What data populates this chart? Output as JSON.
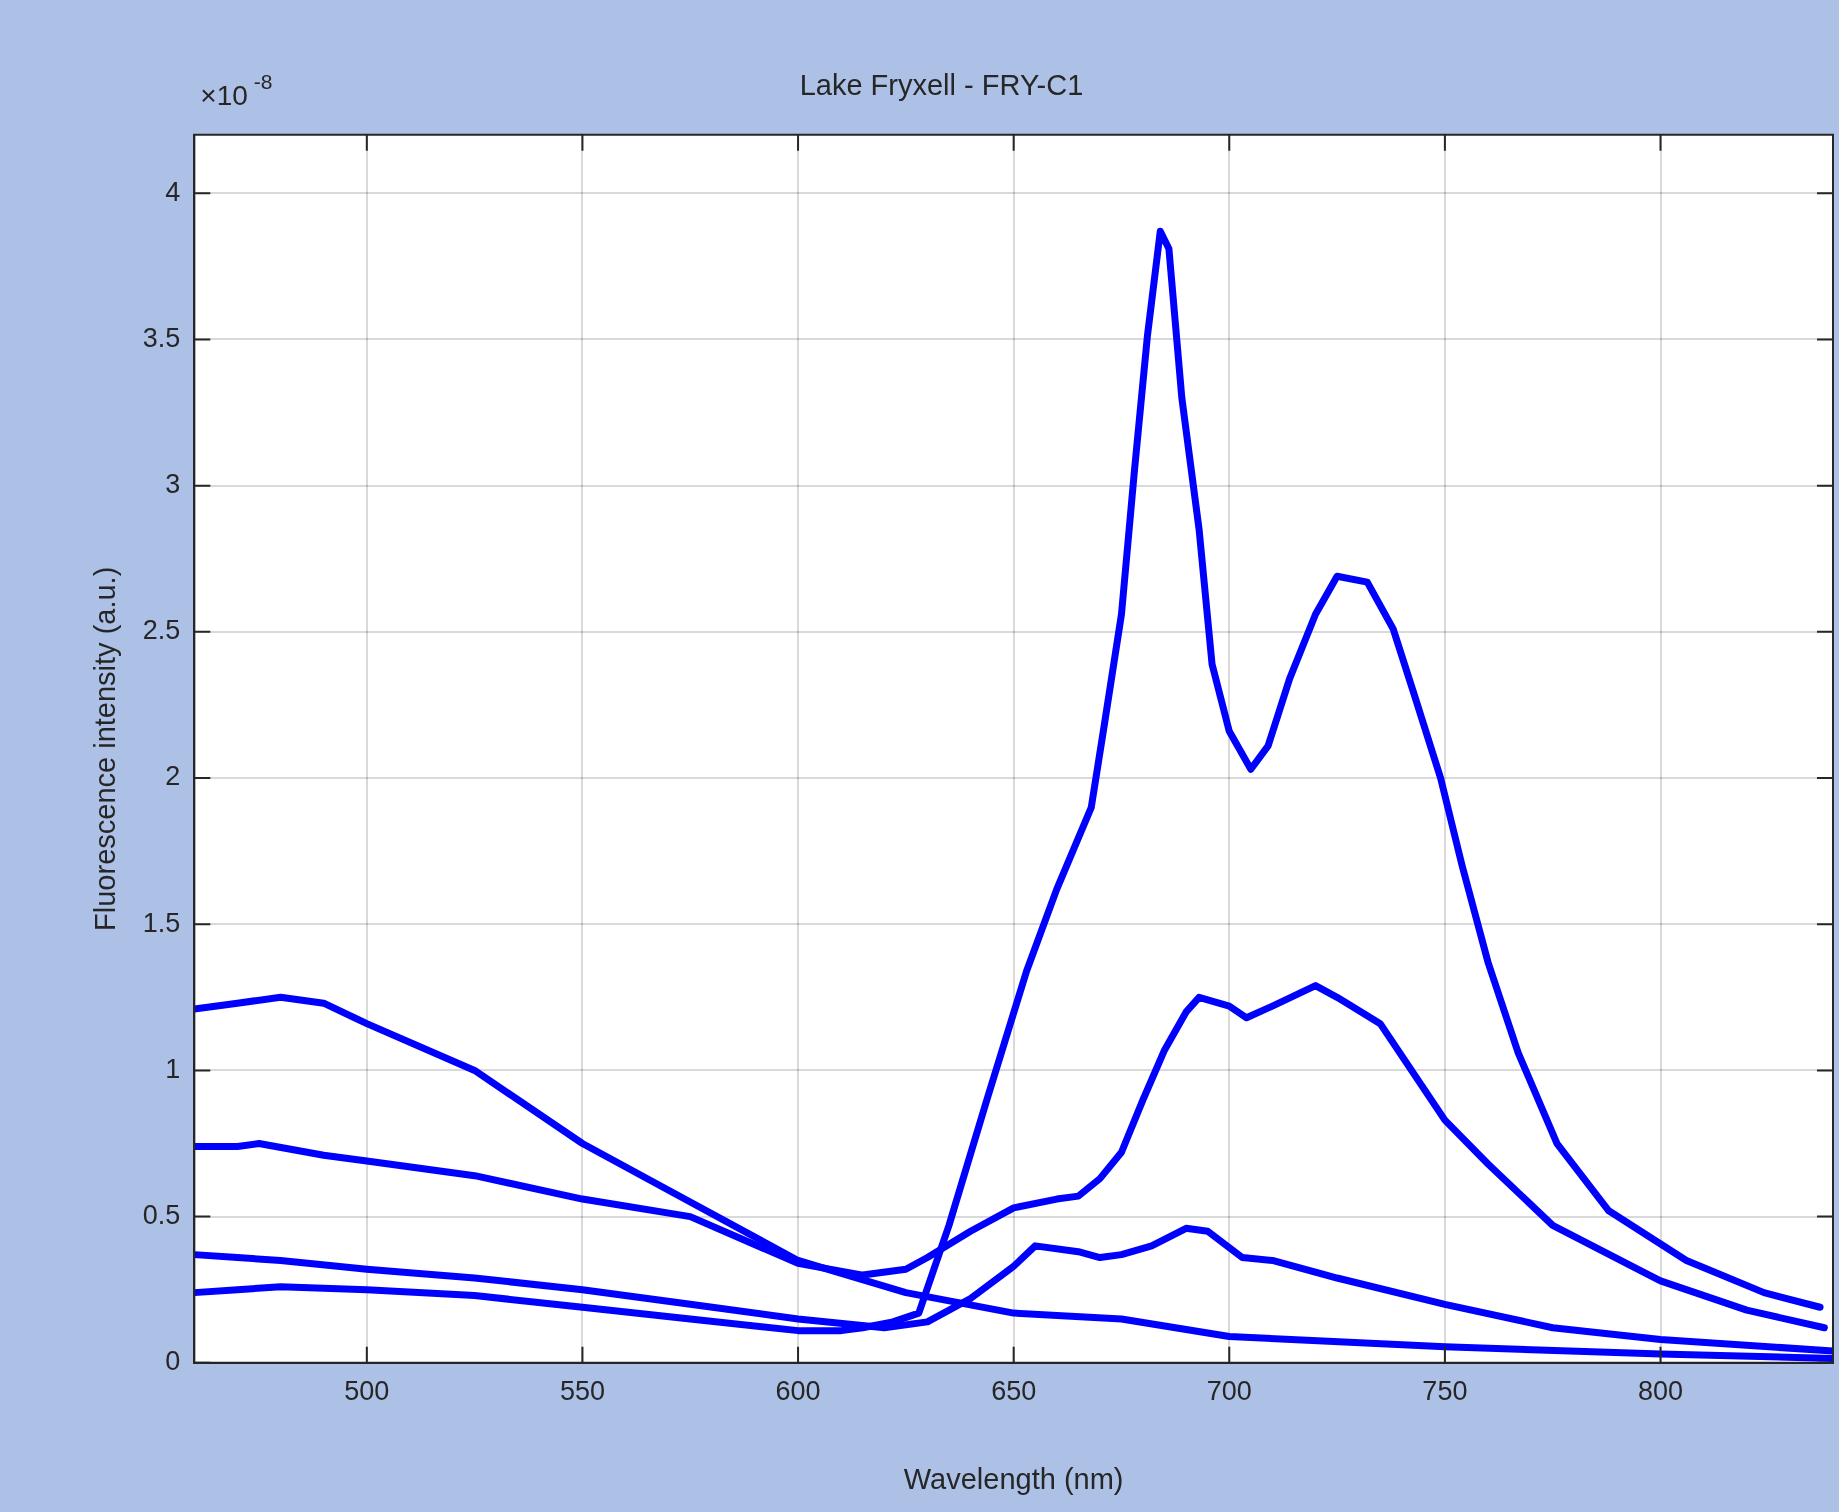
{
  "chart_data": {
    "type": "line",
    "title": "Lake Fryxell - FRY-C1",
    "xlabel": "Wavelength (nm)",
    "ylabel": "Fluorescence intensity (a.u.)",
    "annotations": [
      "×10$^{-8}$"
    ],
    "xlim": [
      460,
      840
    ],
    "xticks": [
      500,
      550,
      600,
      650,
      700,
      750,
      800
    ],
    "ylim": [
      0,
      4.2
    ],
    "yticks": [
      0,
      0.5,
      1,
      1.5,
      2,
      2.5,
      3,
      3.5,
      4
    ],
    "grid": true,
    "legend": false,
    "marker": "none",
    "line_style": "solid",
    "series": [
      {
        "color": "#0000ff",
        "x": [
          460,
          470,
          480,
          490,
          500,
          525,
          550,
          575,
          600,
          625,
          650,
          675,
          700,
          750,
          800,
          840
        ],
        "values": [
          1.21,
          1.23,
          1.25,
          1.23,
          1.16,
          1.0,
          0.75,
          0.55,
          0.35,
          0.24,
          0.17,
          0.15,
          0.09,
          0.055,
          0.03,
          0.015
        ]
      },
      {
        "color": "#0000ff",
        "x": [
          460,
          470,
          475,
          490,
          500,
          525,
          550,
          575,
          600,
          615,
          625,
          630,
          640,
          650,
          660,
          665,
          670,
          675,
          680,
          685,
          690,
          693,
          700,
          704,
          710,
          720,
          725,
          735,
          750,
          760,
          775,
          800,
          820,
          838
        ],
        "values": [
          0.74,
          0.74,
          0.75,
          0.71,
          0.69,
          0.64,
          0.56,
          0.5,
          0.34,
          0.3,
          0.32,
          0.36,
          0.45,
          0.53,
          0.56,
          0.57,
          0.63,
          0.72,
          0.9,
          1.07,
          1.2,
          1.25,
          1.22,
          1.18,
          1.22,
          1.29,
          1.25,
          1.16,
          0.83,
          0.68,
          0.47,
          0.28,
          0.18,
          0.12
        ]
      },
      {
        "color": "#0000ff",
        "x": [
          460,
          470,
          480,
          500,
          525,
          550,
          575,
          600,
          620,
          630,
          640,
          650,
          655,
          665,
          670,
          675,
          682,
          690,
          695,
          703,
          710,
          725,
          750,
          775,
          800,
          840
        ],
        "values": [
          0.37,
          0.36,
          0.35,
          0.32,
          0.29,
          0.25,
          0.2,
          0.15,
          0.12,
          0.14,
          0.22,
          0.33,
          0.4,
          0.38,
          0.36,
          0.37,
          0.4,
          0.46,
          0.45,
          0.36,
          0.35,
          0.29,
          0.2,
          0.12,
          0.08,
          0.04
        ]
      },
      {
        "color": "#0000ff",
        "x": [
          460,
          470,
          480,
          500,
          525,
          550,
          575,
          600,
          610,
          615,
          622,
          628,
          635,
          644,
          653,
          660,
          668,
          671,
          675,
          678,
          681,
          684,
          686,
          689,
          693,
          696,
          700,
          705,
          709,
          714,
          720,
          725,
          732,
          738,
          743,
          749,
          754,
          760,
          767,
          776,
          788,
          806,
          824,
          837
        ],
        "values": [
          0.24,
          0.25,
          0.26,
          0.25,
          0.23,
          0.19,
          0.15,
          0.11,
          0.11,
          0.12,
          0.14,
          0.17,
          0.47,
          0.91,
          1.34,
          1.62,
          1.9,
          2.18,
          2.56,
          3.05,
          3.51,
          3.87,
          3.81,
          3.3,
          2.85,
          2.39,
          2.16,
          2.03,
          2.11,
          2.34,
          2.56,
          2.69,
          2.67,
          2.51,
          2.28,
          2.0,
          1.7,
          1.37,
          1.06,
          0.75,
          0.52,
          0.35,
          0.24,
          0.19
        ]
      }
    ]
  }
}
